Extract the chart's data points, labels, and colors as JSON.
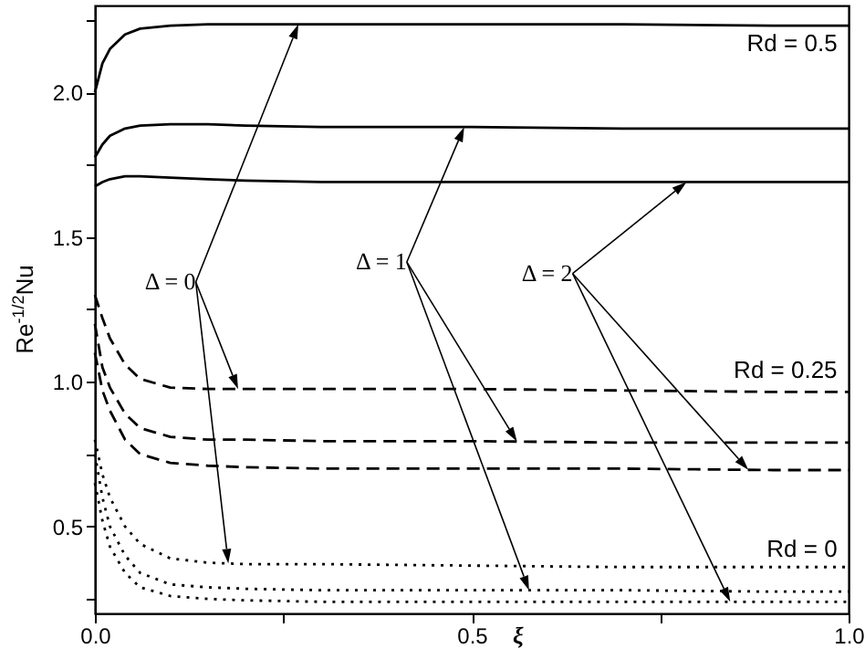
{
  "chart_data": {
    "type": "line",
    "xlabel": "ξ",
    "ylabel": "Re$^{-1/2}$Nu",
    "x": [
      0,
      0.01,
      0.02,
      0.04,
      0.06,
      0.1,
      0.15,
      0.2,
      0.3,
      0.5,
      0.7,
      0.9,
      1.0
    ],
    "series": [
      {
        "color": "#000000",
        "line_style": "solid",
        "values": [
          2.0,
          2.1,
          2.15,
          2.2,
          2.22,
          2.23,
          2.235,
          2.235,
          2.235,
          2.235,
          2.235,
          2.23,
          2.23
        ]
      },
      {
        "color": "#000000",
        "line_style": "solid",
        "values": [
          1.775,
          1.82,
          1.85,
          1.875,
          1.885,
          1.89,
          1.89,
          1.885,
          1.88,
          1.88,
          1.875,
          1.875,
          1.875
        ]
      },
      {
        "color": "#000000",
        "line_style": "solid",
        "values": [
          1.675,
          1.69,
          1.7,
          1.71,
          1.71,
          1.705,
          1.7,
          1.695,
          1.69,
          1.69,
          1.69,
          1.69,
          1.69
        ]
      },
      {
        "color": "#000000",
        "line_style": "dashed",
        "values": [
          1.3,
          1.22,
          1.15,
          1.06,
          1.01,
          0.98,
          0.975,
          0.975,
          0.975,
          0.975,
          0.97,
          0.965,
          0.965
        ]
      },
      {
        "color": "#000000",
        "line_style": "dashed",
        "values": [
          1.2,
          1.05,
          0.98,
          0.89,
          0.84,
          0.81,
          0.8,
          0.8,
          0.795,
          0.795,
          0.79,
          0.79,
          0.79
        ]
      },
      {
        "color": "#000000",
        "line_style": "dashed",
        "values": [
          1.1,
          0.97,
          0.9,
          0.8,
          0.75,
          0.72,
          0.71,
          0.705,
          0.7,
          0.7,
          0.7,
          0.695,
          0.695
        ]
      },
      {
        "color": "#000000",
        "line_style": "dotted",
        "values": [
          0.8,
          0.68,
          0.6,
          0.5,
          0.44,
          0.39,
          0.375,
          0.37,
          0.37,
          0.365,
          0.36,
          0.36,
          0.36
        ]
      },
      {
        "color": "#000000",
        "line_style": "dotted",
        "values": [
          0.75,
          0.6,
          0.5,
          0.4,
          0.34,
          0.3,
          0.29,
          0.285,
          0.28,
          0.28,
          0.28,
          0.275,
          0.275
        ]
      },
      {
        "color": "#000000",
        "line_style": "dotted",
        "values": [
          0.65,
          0.52,
          0.43,
          0.34,
          0.29,
          0.26,
          0.25,
          0.245,
          0.24,
          0.24,
          0.24,
          0.24,
          0.24
        ]
      }
    ],
    "annotations": [
      "Δ = 0",
      "Δ = 1",
      "Δ = 2",
      "Rd = 0.5",
      "Rd = 0.25",
      "Rd = 0"
    ],
    "xlim": [
      0,
      1
    ],
    "ylim": [
      0.2,
      2.3
    ],
    "xticks": [
      {
        "value": 0,
        "label": "0.0"
      },
      {
        "value": 0.25,
        "label": null
      },
      0.5,
      {
        "value": 0.75,
        "label": null
      },
      {
        "value": 1,
        "label": "1.0"
      }
    ],
    "yticks": [
      {
        "value": 0.25,
        "label": null
      },
      0.5,
      {
        "value": 0.75,
        "label": null
      },
      {
        "value": 1,
        "label": "1.0"
      },
      {
        "value": 1.25,
        "label": null
      },
      1.5,
      {
        "value": 1.75,
        "label": null
      },
      {
        "value": 2,
        "label": "2.0"
      },
      {
        "value": 2.25,
        "label": null
      }
    ],
    "grid": false,
    "marker": "none"
  }
}
